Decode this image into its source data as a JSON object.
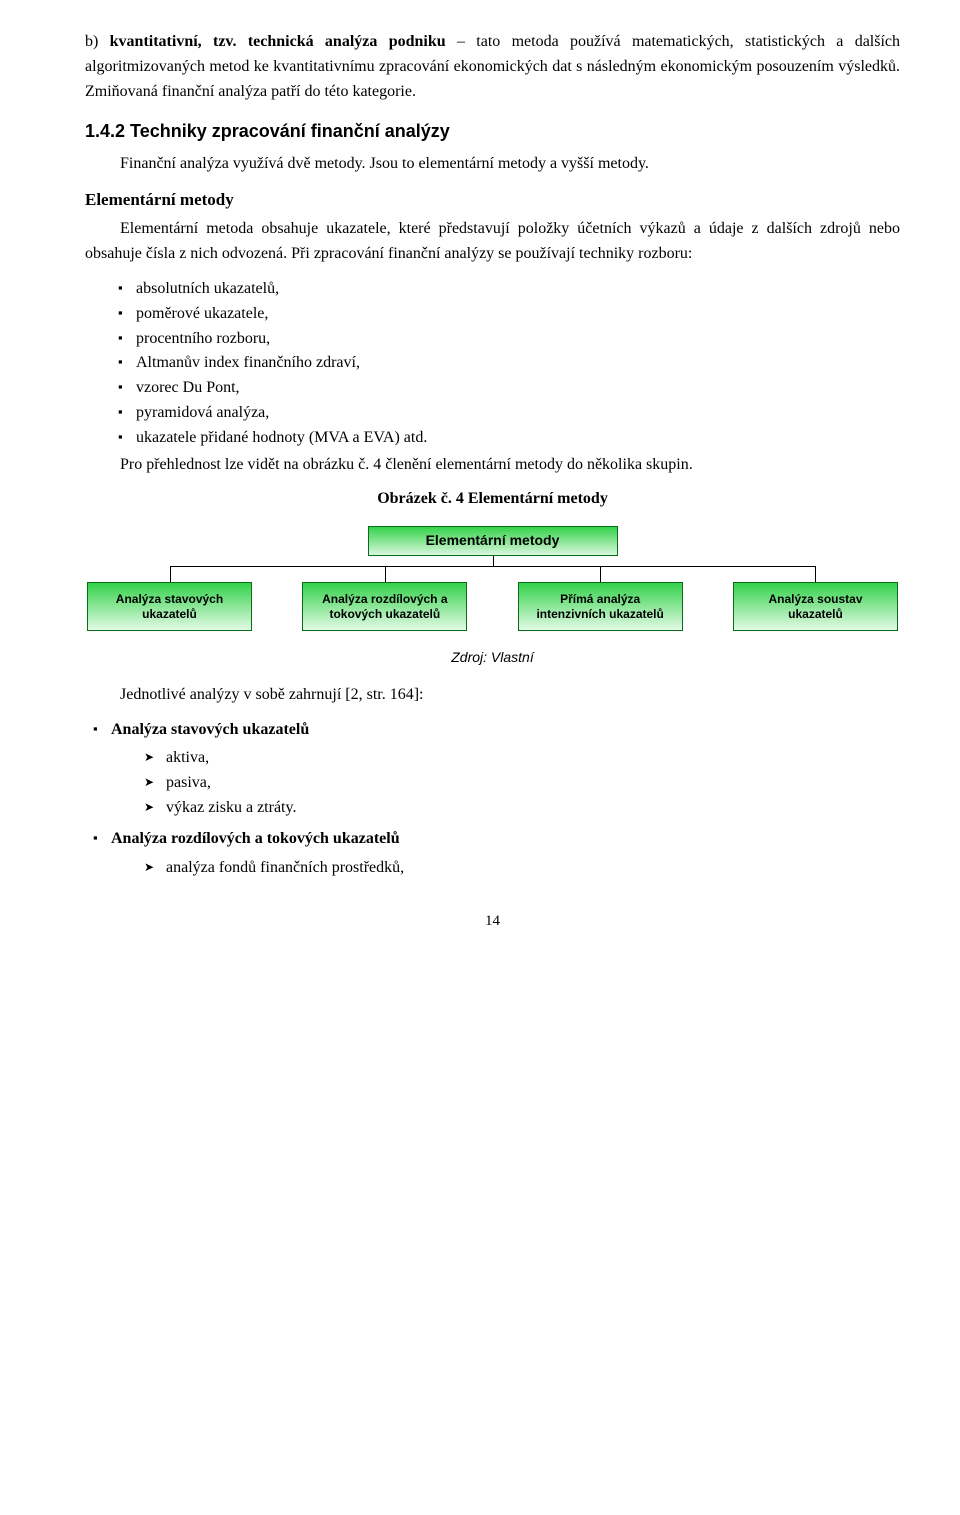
{
  "intro_b": {
    "prefix": "b)",
    "title": "kvantitativní, tzv. technická analýza podniku",
    "rest": " – tato metoda používá matematických, statistických a dalších algoritmizovaných metod ke kvantitativnímu zpracování ekonomických dat s následným ekonomickým posouzením výsledků. Zmiňovaná finanční analýza patří do této kategorie."
  },
  "h2": "1.4.2  Techniky zpracování finanční analýzy",
  "h2_sub": "Finanční analýza využívá dvě metody. Jsou to elementární metody a vyšší metody.",
  "h3": "Elementární metody",
  "p1": "Elementární metoda obsahuje ukazatele, které představují položky účetních výkazů a údaje z dalších zdrojů nebo obsahuje čísla z nich odvozená. Při zpracování finanční analýzy se používají techniky rozboru:",
  "bullets1": [
    "absolutních ukazatelů,",
    "poměrové ukazatele,",
    "procentního rozboru,",
    "Altmanův index finančního zdraví,",
    "vzorec Du Pont,",
    "pyramidová analýza,",
    "ukazatele přidané hodnoty (MVA a EVA) atd."
  ],
  "p2": "Pro přehlednost lze vidět na obrázku č. 4 členění elementární metody do několika skupin.",
  "fig_title": "Obrázek č. 4 Elementární metody",
  "diagram": {
    "root": {
      "label": "Elementární metody",
      "bg_top": "#34d24a",
      "bg_bottom": "#d9f7dc",
      "border": "#0a6b1a"
    },
    "children": [
      {
        "label": "Analýza stavových ukazatelů"
      },
      {
        "label": "Analýza rozdílových a tokových ukazatelů"
      },
      {
        "label": "Přímá analýza intenzivních ukazatelů"
      },
      {
        "label": "Analýza soustav ukazatelů"
      }
    ],
    "child_bg_top": "#34d24a",
    "child_bg_bottom": "#e3fae6",
    "child_border": "#0a6b1a",
    "conn_color": "#000000"
  },
  "source": "Zdroj: Vlastní",
  "p3": "Jednotlivé analýzy v sobě zahrnují [2, str. 164]:",
  "sect1": {
    "title": "Analýza stavových ukazatelů",
    "items": [
      "aktiva,",
      "pasiva,",
      "výkaz zisku a ztráty."
    ]
  },
  "sect2": {
    "title": "Analýza rozdílových a tokových ukazatelů",
    "items": [
      "analýza fondů finančních prostředků,"
    ]
  },
  "pagenum": "14"
}
